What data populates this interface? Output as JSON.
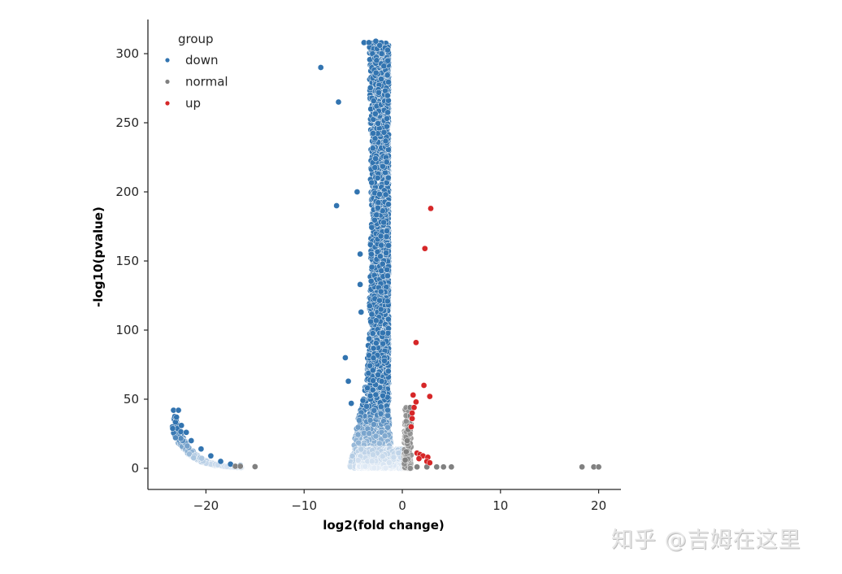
{
  "chart_data": {
    "type": "scatter",
    "title": "",
    "xlabel": "log2(fold change)",
    "ylabel": "-log10(pvalue)",
    "xlim": [
      -25.5,
      22.2
    ],
    "ylim": [
      -15,
      324
    ],
    "xticks": [
      -20,
      -10,
      0,
      10,
      20
    ],
    "xtick_labels": [
      "−20",
      "−10",
      "0",
      "10",
      "20"
    ],
    "yticks": [
      0,
      50,
      100,
      150,
      200,
      250,
      300
    ],
    "ytick_labels": [
      "0",
      "50",
      "100",
      "150",
      "200",
      "250",
      "300"
    ],
    "grid": false,
    "legend": {
      "title": "group",
      "position": "upper left",
      "entries": [
        {
          "label": "down",
          "color": "#3274b0"
        },
        {
          "label": "normal",
          "color": "#808080"
        },
        {
          "label": "up",
          "color": "#d62728"
        }
      ]
    },
    "series": [
      {
        "name": "down",
        "color": "#3274b0",
        "description": "dense vertical band at x in [-4.5,-1] reaching y~308, plus low-y tail at x in [-23.5,-16] with y up to ~42",
        "points": [
          [
            -8.3,
            290
          ],
          [
            -6.5,
            265
          ],
          [
            -6.7,
            190
          ],
          [
            -5.8,
            80
          ],
          [
            -5.5,
            63
          ],
          [
            -5.2,
            47
          ],
          [
            -4.6,
            200
          ],
          [
            -4.3,
            155
          ],
          [
            -4.3,
            133
          ],
          [
            -4.2,
            113
          ],
          [
            -3.9,
            308
          ],
          [
            -3.4,
            308
          ],
          [
            -2.7,
            309
          ],
          [
            -2.3,
            306
          ],
          [
            -2.1,
            300
          ],
          [
            -23.3,
            42
          ],
          [
            -22.8,
            42
          ],
          [
            -23.0,
            37
          ],
          [
            -22.5,
            31
          ],
          [
            -22.0,
            26
          ],
          [
            -21.5,
            20
          ],
          [
            -20.5,
            14
          ],
          [
            -19.5,
            9
          ],
          [
            -18.5,
            5
          ],
          [
            -17.5,
            3
          ],
          [
            -16.5,
            2
          ]
        ]
      },
      {
        "name": "normal",
        "color": "#808080",
        "description": "points near x=0 with low y, plus outliers on x axis",
        "points": [
          [
            -17.0,
            1.5
          ],
          [
            -16.5,
            1.5
          ],
          [
            -15.0,
            1.2
          ],
          [
            0.8,
            44
          ],
          [
            0.8,
            38
          ],
          [
            0.6,
            28
          ],
          [
            0.5,
            20
          ],
          [
            0.4,
            12
          ],
          [
            0.3,
            6
          ],
          [
            1.5,
            1
          ],
          [
            2.5,
            1
          ],
          [
            3.5,
            1
          ],
          [
            4.2,
            1
          ],
          [
            5.0,
            1
          ],
          [
            18.3,
            1
          ],
          [
            19.5,
            1
          ],
          [
            20.0,
            1
          ]
        ]
      },
      {
        "name": "up",
        "color": "#d62728",
        "points": [
          [
            2.9,
            188
          ],
          [
            2.3,
            159
          ],
          [
            1.4,
            91
          ],
          [
            2.2,
            60
          ],
          [
            2.8,
            52
          ],
          [
            1.1,
            53
          ],
          [
            1.4,
            48
          ],
          [
            1.2,
            44
          ],
          [
            1.0,
            40
          ],
          [
            1.0,
            36
          ],
          [
            0.9,
            30
          ],
          [
            1.5,
            11
          ],
          [
            1.8,
            10
          ],
          [
            2.1,
            9
          ],
          [
            2.6,
            8
          ],
          [
            1.7,
            7
          ],
          [
            2.5,
            5
          ],
          [
            2.8,
            4
          ]
        ]
      }
    ]
  },
  "watermark": "知乎 @吉姆在这里"
}
